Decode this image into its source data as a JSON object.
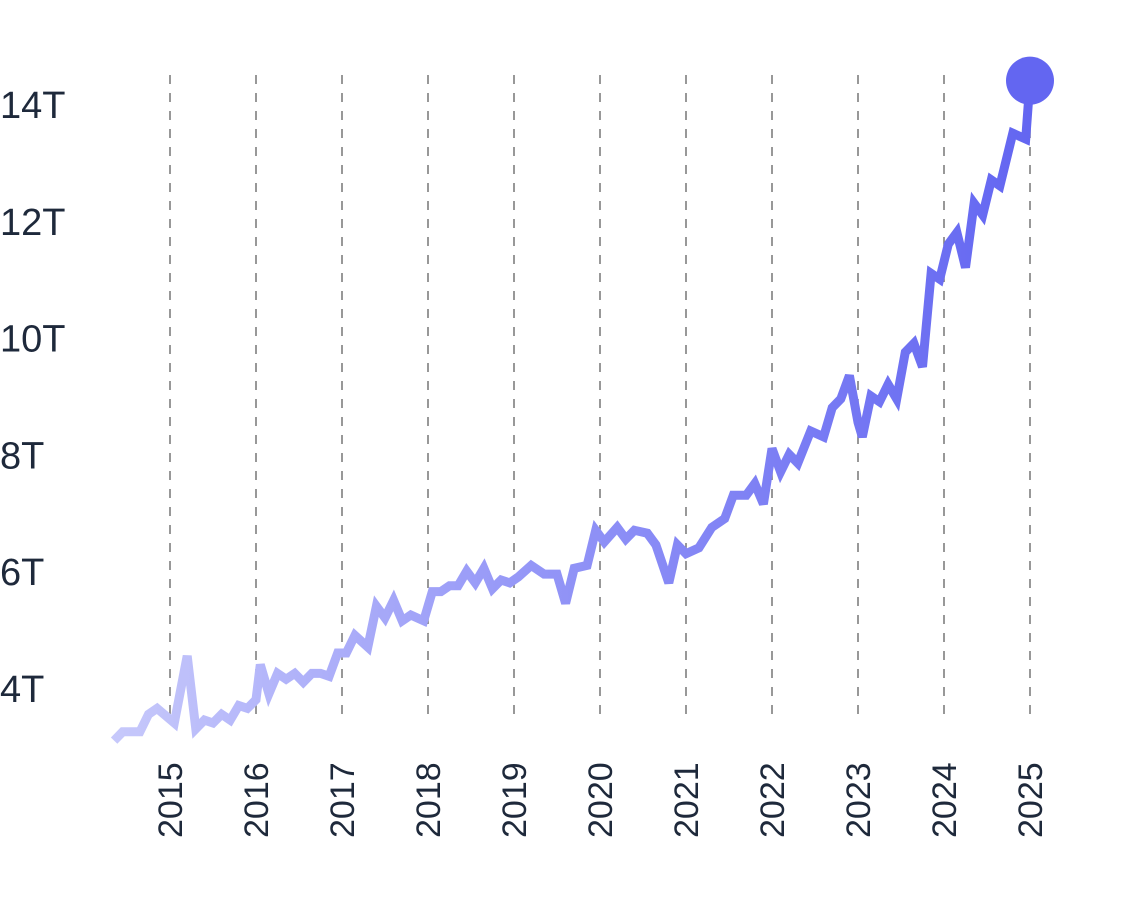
{
  "chart_data": {
    "type": "line",
    "title": "",
    "xlabel": "",
    "ylabel": "",
    "x_tick_labels": [
      "2015",
      "2016",
      "2017",
      "2018",
      "2019",
      "2020",
      "2021",
      "2022",
      "2023",
      "2024",
      "2025"
    ],
    "y_tick_labels": [
      "4T",
      "6T",
      "8T",
      "10T",
      "12T",
      "14T"
    ],
    "y_ticks": [
      4,
      6,
      8,
      10,
      12,
      14
    ],
    "ylim": [
      3.2,
      14.4
    ],
    "xlim": [
      2014.35,
      2025.0
    ],
    "grid": {
      "x": "dashed vertical lines at each year",
      "y": false
    },
    "legend": null,
    "end_marker": {
      "x": 2025.0,
      "y": 14.4,
      "shape": "circle"
    },
    "line_color_start": "#c7c9fb",
    "line_color_end": "#6366f1",
    "series": [
      {
        "name": "value",
        "x": [
          2014.35,
          2014.45,
          2014.55,
          2014.65,
          2014.75,
          2014.85,
          2015.05,
          2015.2,
          2015.3,
          2015.4,
          2015.5,
          2015.6,
          2015.7,
          2015.8,
          2015.9,
          2016.0,
          2016.05,
          2016.15,
          2016.25,
          2016.35,
          2016.45,
          2016.55,
          2016.65,
          2016.75,
          2016.85,
          2016.95,
          2017.05,
          2017.15,
          2017.3,
          2017.4,
          2017.5,
          2017.6,
          2017.7,
          2017.8,
          2017.95,
          2018.05,
          2018.15,
          2018.25,
          2018.35,
          2018.45,
          2018.55,
          2018.65,
          2018.75,
          2018.85,
          2018.95,
          2019.05,
          2019.2,
          2019.35,
          2019.5,
          2019.6,
          2019.7,
          2019.85,
          2019.95,
          2020.05,
          2020.2,
          2020.3,
          2020.4,
          2020.55,
          2020.65,
          2020.8,
          2020.9,
          2021.0,
          2021.15,
          2021.3,
          2021.45,
          2021.55,
          2021.7,
          2021.8,
          2021.9,
          2022.0,
          2022.1,
          2022.2,
          2022.3,
          2022.45,
          2022.6,
          2022.7,
          2022.8,
          2022.9,
          2023.0,
          2023.05,
          2023.15,
          2023.25,
          2023.35,
          2023.45,
          2023.55,
          2023.65,
          2023.75,
          2023.85,
          2023.95,
          2024.05,
          2024.15,
          2024.25,
          2024.35,
          2024.45,
          2024.55,
          2024.65,
          2024.8,
          2024.95,
          2025.0
        ],
        "values": [
          3.1,
          3.25,
          3.25,
          3.25,
          3.55,
          3.65,
          3.4,
          4.55,
          3.3,
          3.45,
          3.4,
          3.55,
          3.45,
          3.7,
          3.65,
          3.8,
          4.4,
          3.9,
          4.25,
          4.15,
          4.25,
          4.1,
          4.25,
          4.25,
          4.2,
          4.6,
          4.6,
          4.9,
          4.7,
          5.4,
          5.2,
          5.5,
          5.15,
          5.25,
          5.15,
          5.65,
          5.65,
          5.75,
          5.75,
          6.0,
          5.8,
          6.05,
          5.7,
          5.85,
          5.8,
          5.9,
          6.1,
          5.95,
          5.95,
          5.45,
          6.05,
          6.1,
          6.7,
          6.5,
          6.75,
          6.55,
          6.7,
          6.65,
          6.45,
          5.8,
          6.45,
          6.3,
          6.4,
          6.75,
          6.9,
          7.3,
          7.3,
          7.5,
          7.15,
          8.1,
          7.7,
          8.0,
          7.85,
          8.4,
          8.3,
          8.8,
          8.95,
          9.35,
          8.55,
          8.3,
          9.0,
          8.9,
          9.2,
          8.95,
          9.75,
          9.9,
          9.5,
          11.1,
          11.0,
          11.6,
          11.8,
          11.2,
          12.3,
          12.1,
          12.7,
          12.6,
          13.5,
          13.4,
          14.4
        ]
      }
    ]
  }
}
